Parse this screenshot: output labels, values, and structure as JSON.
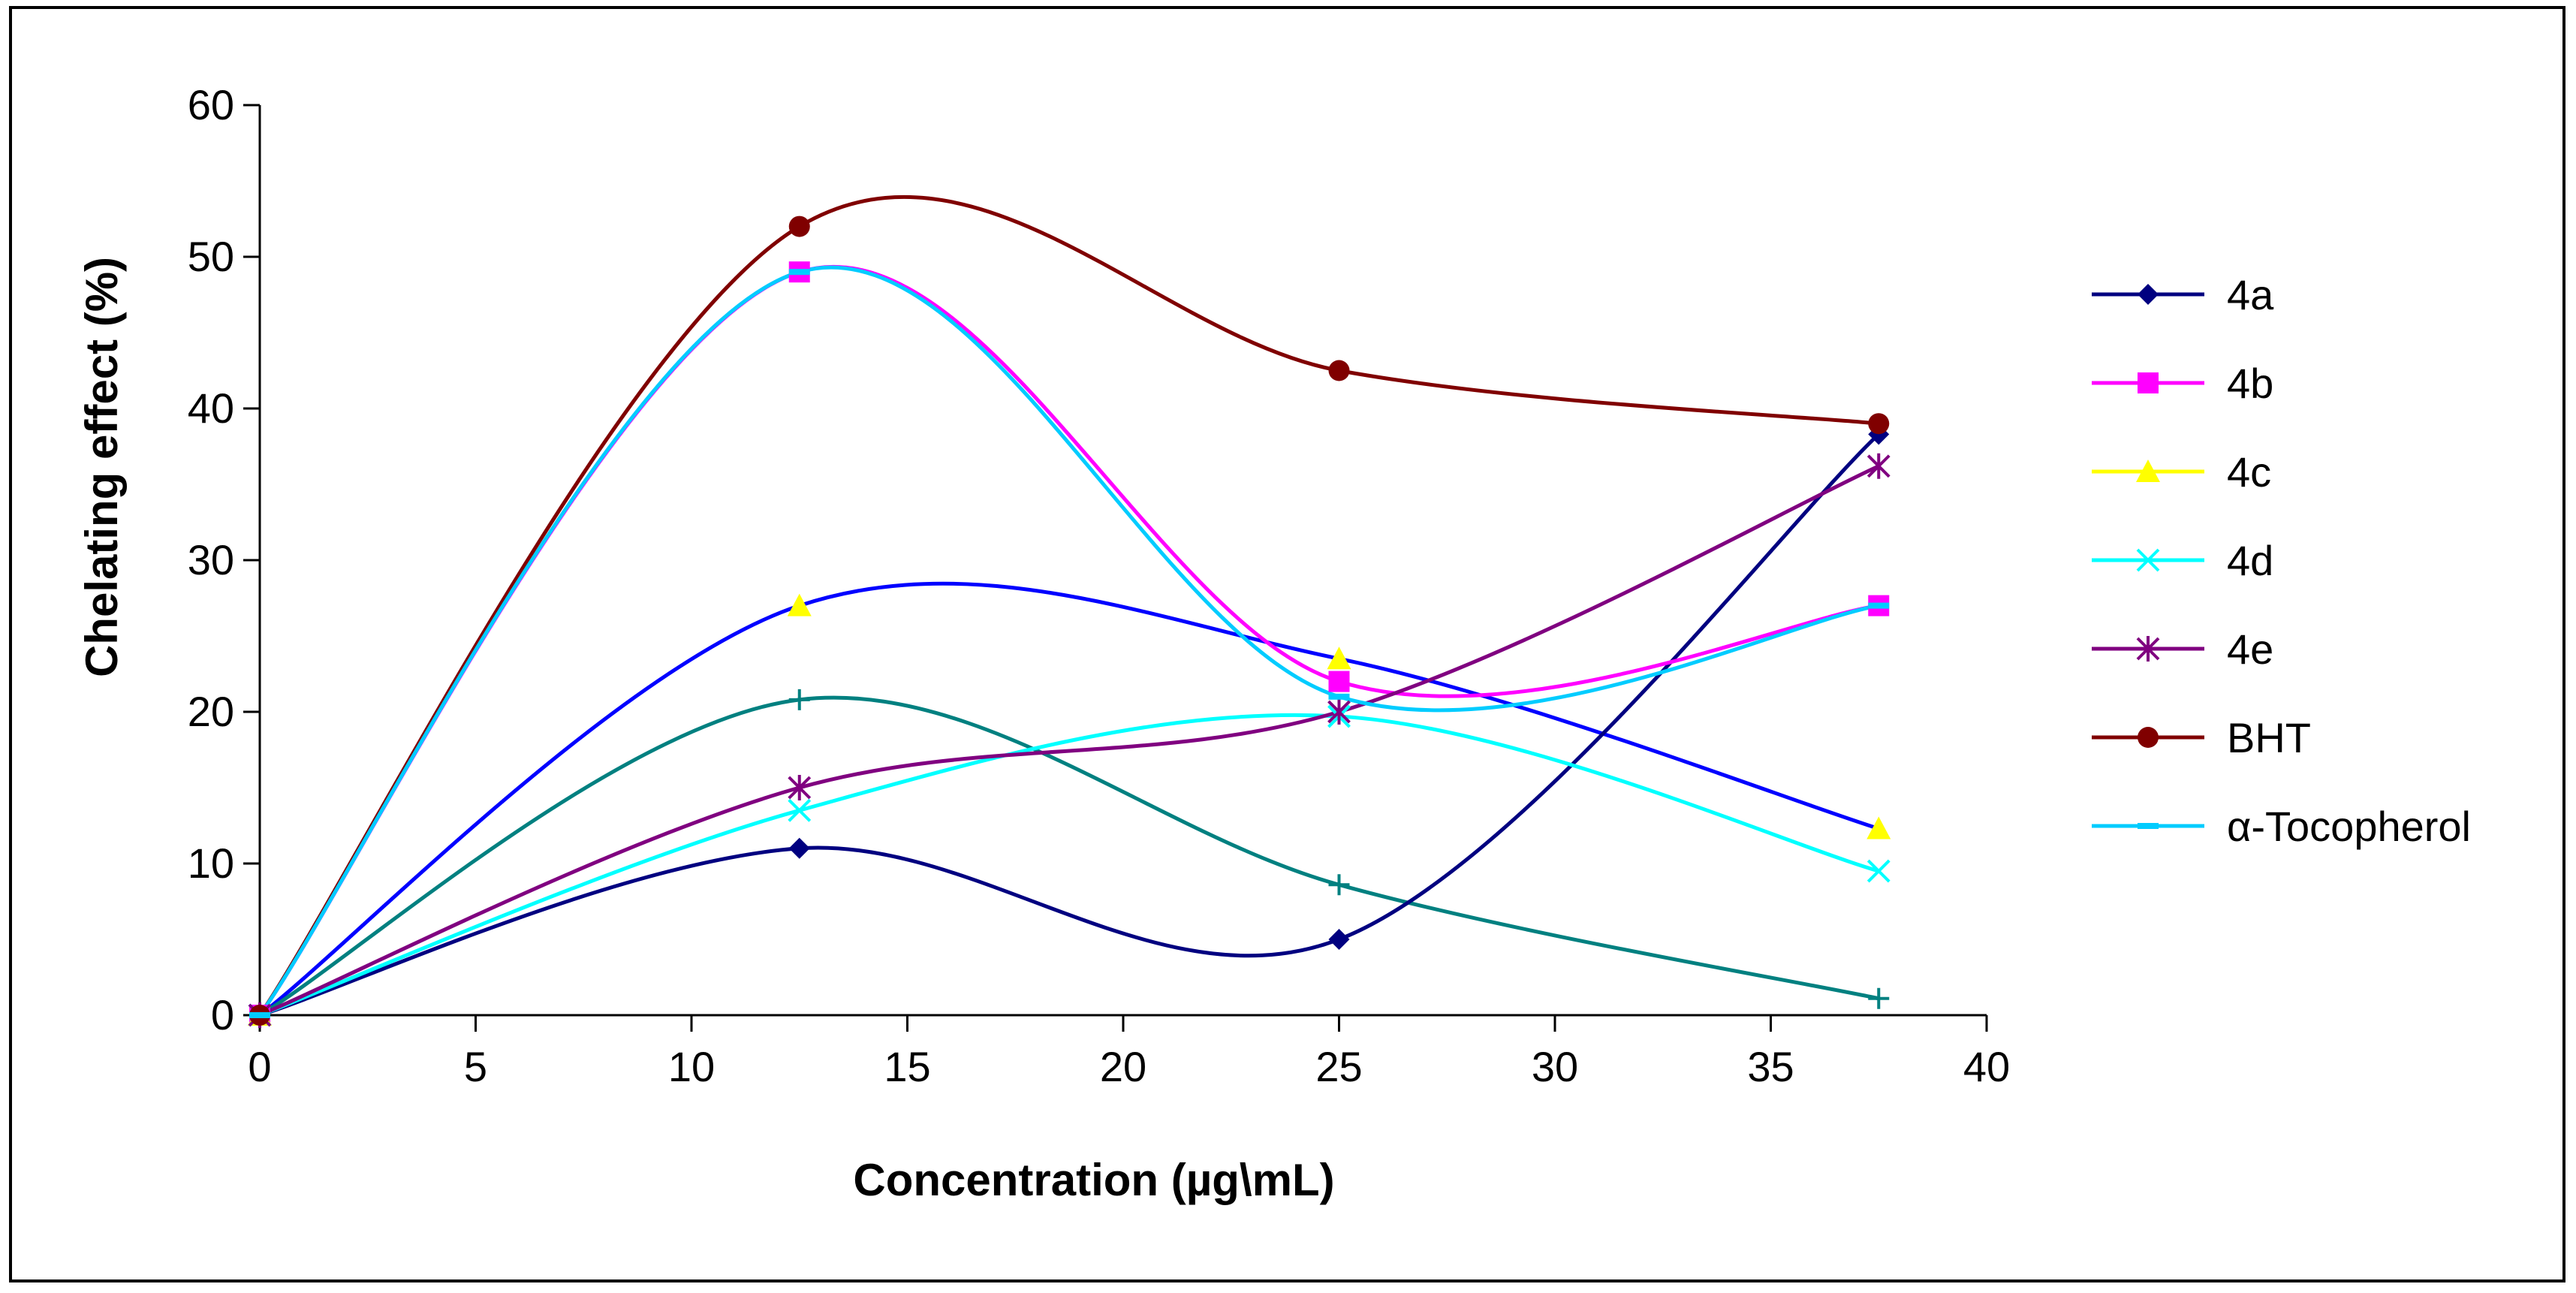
{
  "chart_data": {
    "type": "line",
    "title": "",
    "xlabel": "Concentration (µg\\mL)",
    "ylabel": "Chelating effect (%)",
    "xlim": [
      0,
      40
    ],
    "ylim": [
      0,
      60
    ],
    "x_ticks": [
      "0",
      "5",
      "10",
      "15",
      "20",
      "25",
      "30",
      "35",
      "40"
    ],
    "y_ticks": [
      "0",
      "10",
      "20",
      "30",
      "40",
      "50",
      "60"
    ],
    "x": [
      0,
      12.5,
      25,
      37.5
    ],
    "grid": false,
    "legend": "right",
    "series": [
      {
        "name": "4a",
        "values": [
          0,
          11,
          5,
          38.3
        ],
        "color": "#000080",
        "marker": "diamond"
      },
      {
        "name": "4b",
        "values": [
          0,
          49,
          22,
          27
        ],
        "color": "#ff00ff",
        "marker": "square"
      },
      {
        "name": "4c",
        "values": [
          0,
          27,
          23.5,
          12.3
        ],
        "color": "#ffff00",
        "marker": "triangle"
      },
      {
        "name": "4d",
        "values": [
          0,
          13.5,
          19.7,
          9.5
        ],
        "color": "#00ffff",
        "marker": "x"
      },
      {
        "name": "4e",
        "values": [
          0,
          15,
          20,
          36.2
        ],
        "color": "#800080",
        "marker": "asterisk"
      },
      {
        "name": "BHT",
        "values": [
          0,
          52,
          42.5,
          39
        ],
        "color": "#800000",
        "marker": "circle"
      },
      {
        "name": "α-Tocopherol",
        "values": [
          0,
          49,
          21,
          27
        ],
        "color": "#00ccff",
        "marker": "dash"
      }
    ],
    "unlabeled_lines": [
      {
        "values": [
          0,
          27,
          23.5,
          12.3
        ],
        "color": "#0000ff"
      },
      {
        "values": [
          0,
          20.8,
          8.6,
          1.1
        ],
        "color": "#008080",
        "marker": "plus"
      }
    ]
  }
}
